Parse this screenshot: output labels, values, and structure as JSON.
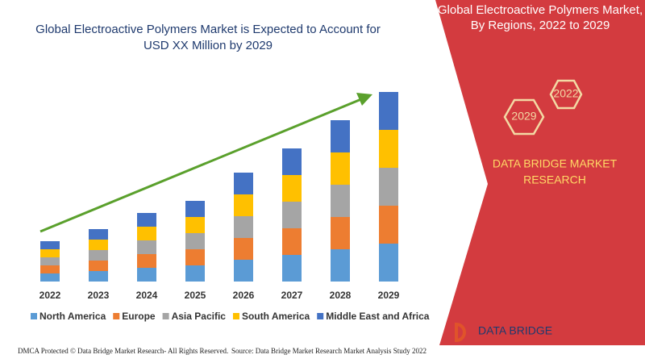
{
  "chart_data": {
    "type": "stacked-bar",
    "title": [
      "Global Electroactive Polymers Market is Expected to Account for",
      "USD XX Million by 2029"
    ],
    "categories": [
      "2022",
      "2023",
      "2024",
      "2025",
      "2026",
      "2027",
      "2028",
      "2029"
    ],
    "series": [
      {
        "name": "North America",
        "color": "#5b9bd5",
        "values": [
          10,
          13,
          17,
          20,
          27,
          33,
          40,
          47
        ]
      },
      {
        "name": "Europe",
        "color": "#ed7d31",
        "values": [
          10,
          13,
          17,
          20,
          27,
          33,
          40,
          47
        ]
      },
      {
        "name": "Asia Pacific",
        "color": "#a5a5a5",
        "values": [
          10,
          13,
          17,
          20,
          27,
          33,
          40,
          47
        ]
      },
      {
        "name": "South America",
        "color": "#ffc000",
        "values": [
          10,
          13,
          17,
          20,
          27,
          33,
          40,
          47
        ]
      },
      {
        "name": "Middle East and Africa",
        "color": "#4472c4",
        "values": [
          10,
          13,
          17,
          20,
          27,
          33,
          40,
          47
        ]
      }
    ],
    "legend": "bottom"
  },
  "panel": {
    "title": [
      "Global Electroactive Polymers Market,",
      "By Regions, 2022 to 2029"
    ],
    "hexagons": [
      "2022",
      "2029"
    ],
    "brand": [
      "DATA BRIDGE MARKET",
      "RESEARCH"
    ]
  },
  "logo": "DATA BRIDGE",
  "footer": {
    "left": "DMCA Protected © Data Bridge Market Research- All Rights Reserved.",
    "right": "Source: Data Bridge Market Research Market Analysis Study 2022"
  }
}
